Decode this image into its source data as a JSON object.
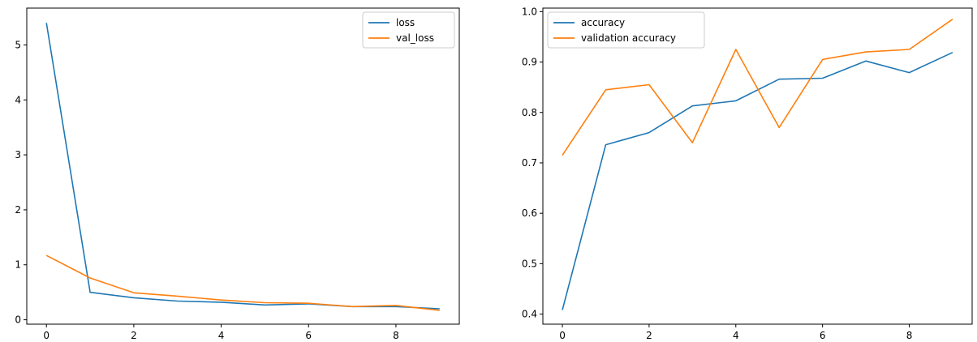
{
  "chart_data": [
    {
      "type": "line",
      "x": [
        0,
        1,
        2,
        3,
        4,
        5,
        6,
        7,
        8,
        9
      ],
      "xticks": [
        0,
        2,
        4,
        6,
        8
      ],
      "yticks": [
        0,
        1,
        2,
        3,
        4,
        5
      ],
      "xlim": [
        -0.45,
        9.45
      ],
      "ylim": [
        -0.08,
        5.67
      ],
      "grid": false,
      "legend_placement": "top-right",
      "series": [
        {
          "name": "loss",
          "color": "#1f77b4",
          "values": [
            5.4,
            0.5,
            0.4,
            0.34,
            0.32,
            0.27,
            0.29,
            0.24,
            0.24,
            0.2
          ]
        },
        {
          "name": "val_loss",
          "color": "#ff7f0e",
          "values": [
            1.17,
            0.76,
            0.49,
            0.43,
            0.36,
            0.31,
            0.3,
            0.24,
            0.26,
            0.17
          ]
        }
      ]
    },
    {
      "type": "line",
      "x": [
        0,
        1,
        2,
        3,
        4,
        5,
        6,
        7,
        8,
        9
      ],
      "xticks": [
        0,
        2,
        4,
        6,
        8
      ],
      "yticks": [
        "0.4",
        "0.5",
        "0.6",
        "0.7",
        "0.8",
        "0.9",
        "1.0"
      ],
      "xlim": [
        -0.45,
        9.45
      ],
      "ylim": [
        0.38,
        1.007
      ],
      "grid": false,
      "legend_placement": "top-left",
      "series": [
        {
          "name": "accuracy",
          "color": "#1f77b4",
          "values": [
            0.408,
            0.736,
            0.76,
            0.813,
            0.823,
            0.866,
            0.868,
            0.902,
            0.879,
            0.919
          ]
        },
        {
          "name": "validation accuracy",
          "color": "#ff7f0e",
          "values": [
            0.715,
            0.845,
            0.855,
            0.74,
            0.925,
            0.77,
            0.905,
            0.92,
            0.925,
            0.985
          ]
        }
      ]
    }
  ]
}
